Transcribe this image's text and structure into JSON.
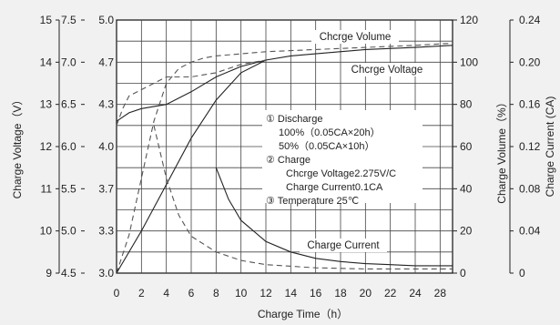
{
  "chart_data": {
    "type": "line",
    "xlabel": "Charge Time（h）",
    "x_ticks": [
      "0",
      "2",
      "4",
      "6",
      "8",
      "10",
      "12",
      "14",
      "16",
      "18",
      "20",
      "22",
      "24",
      "28"
    ],
    "xlim": [
      0,
      27
    ],
    "left_axis_outer": {
      "label": "Charge Voltage（V）",
      "ticks": [
        "15",
        "14",
        "13",
        "12",
        "11",
        "10",
        "9"
      ]
    },
    "left_axis_inner": {
      "ticks": [
        "7.5",
        "7.0",
        "6.5",
        "6.0",
        "5.5",
        "5.0",
        "4.5"
      ]
    },
    "left_axis_main": {
      "ticks": [
        "5.0",
        "4.7",
        "4.3",
        "4.0",
        "3.7",
        "3.3",
        "3.0"
      ]
    },
    "right_axis_volume": {
      "label": "Charge Volume（%）",
      "ticks": [
        "120",
        "100",
        "80",
        "60",
        "40",
        "20",
        "0"
      ],
      "ylim": [
        0,
        120
      ]
    },
    "right_axis_current": {
      "label": "Charge Current (CA)",
      "ticks": [
        "0.24",
        "0.20",
        "0.16",
        "0.12",
        "0.08",
        "0.04",
        "0"
      ],
      "ylim": [
        0,
        0.24
      ]
    },
    "annotation_lines": [
      "①  Discharge",
      "100%（0.05CA×20h）",
      "50%（0.05CA×10h）",
      "②  Charge",
      "Chcrge Voltage2.275V/C",
      "Charge Current0.1CA",
      "③  Temperature 25℃"
    ],
    "series": [
      {
        "name": "Chcrge Volume",
        "style": "dashed",
        "values_pct": [
          [
            0,
            0
          ],
          [
            1,
            18
          ],
          [
            2,
            45
          ],
          [
            3,
            72
          ],
          [
            4,
            90
          ],
          [
            5,
            97
          ],
          [
            6,
            100
          ],
          [
            7,
            102
          ],
          [
            8,
            103
          ],
          [
            10,
            104
          ],
          [
            12,
            105
          ],
          [
            16,
            106
          ],
          [
            20,
            107
          ],
          [
            24,
            108
          ],
          [
            27,
            109
          ]
        ]
      },
      {
        "name": "Chcrge Voltage",
        "style": "solid",
        "values_pct": [
          [
            0,
            0
          ],
          [
            2,
            20
          ],
          [
            4,
            42
          ],
          [
            6,
            64
          ],
          [
            8,
            82
          ],
          [
            10,
            95
          ],
          [
            12,
            101
          ],
          [
            14,
            103
          ],
          [
            16,
            104
          ],
          [
            20,
            106
          ],
          [
            24,
            107
          ],
          [
            27,
            108
          ]
        ]
      },
      {
        "name": "Charge Current",
        "style": "solid",
        "values_ca": [
          [
            8,
            0.1
          ],
          [
            9,
            0.07
          ],
          [
            10,
            0.05
          ],
          [
            12,
            0.03
          ],
          [
            14,
            0.02
          ],
          [
            16,
            0.014
          ],
          [
            18,
            0.011
          ],
          [
            20,
            0.009
          ],
          [
            22,
            0.008
          ],
          [
            24,
            0.007
          ],
          [
            27,
            0.007
          ]
        ]
      },
      {
        "name": "Charge Current",
        "style": "dashed",
        "values_ca": [
          [
            3,
            0.14
          ],
          [
            4,
            0.09
          ],
          [
            5,
            0.055
          ],
          [
            6,
            0.035
          ],
          [
            8,
            0.02
          ],
          [
            10,
            0.012
          ],
          [
            12,
            0.008
          ],
          [
            16,
            0.005
          ],
          [
            20,
            0.004
          ],
          [
            27,
            0.004
          ]
        ]
      },
      {
        "name": "Charge Voltage",
        "style": "solid",
        "values_pct": [
          [
            0,
            72
          ],
          [
            1,
            76
          ],
          [
            2,
            78
          ],
          [
            4,
            80
          ],
          [
            6,
            86
          ],
          [
            8,
            93
          ],
          [
            10,
            98
          ],
          [
            12,
            101
          ]
        ]
      },
      {
        "name": "Charge Voltage",
        "style": "dashed",
        "values_pct": [
          [
            0,
            70
          ],
          [
            0.5,
            78
          ],
          [
            1,
            84
          ],
          [
            2,
            87
          ],
          [
            3,
            90
          ],
          [
            4,
            93
          ],
          [
            5,
            93
          ],
          [
            6,
            93
          ],
          [
            8,
            95
          ],
          [
            10,
            99
          ],
          [
            12,
            101
          ]
        ]
      }
    ]
  }
}
